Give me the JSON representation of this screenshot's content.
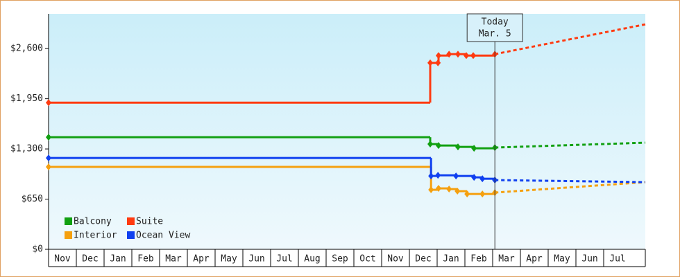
{
  "chart_data": {
    "type": "step-line",
    "xlim": [
      0,
      21.5
    ],
    "xticks": [
      {
        "value": 0,
        "label": "Nov"
      },
      {
        "value": 1,
        "label": "Dec"
      },
      {
        "value": 2,
        "label": "Jan"
      },
      {
        "value": 3,
        "label": "Feb"
      },
      {
        "value": 4,
        "label": "Mar"
      },
      {
        "value": 5,
        "label": "Apr"
      },
      {
        "value": 6,
        "label": "May"
      },
      {
        "value": 7,
        "label": "Jun"
      },
      {
        "value": 8,
        "label": "Jul"
      },
      {
        "value": 9,
        "label": "Aug"
      },
      {
        "value": 10,
        "label": "Sep"
      },
      {
        "value": 11,
        "label": "Oct"
      },
      {
        "value": 12,
        "label": "Nov"
      },
      {
        "value": 13,
        "label": "Dec"
      },
      {
        "value": 14,
        "label": "Jan"
      },
      {
        "value": 15,
        "label": "Feb"
      },
      {
        "value": 16,
        "label": "Mar"
      },
      {
        "value": 17,
        "label": "Apr"
      },
      {
        "value": 18,
        "label": "May"
      },
      {
        "value": 19,
        "label": "Jun"
      },
      {
        "value": 20,
        "label": "Jul"
      }
    ],
    "ylim": [
      0,
      3050
    ],
    "yticks": [
      {
        "value": 0,
        "label": "$0"
      },
      {
        "value": 650,
        "label": "$650"
      },
      {
        "value": 1300,
        "label": "$1,300"
      },
      {
        "value": 1950,
        "label": "$1,950"
      },
      {
        "value": 2600,
        "label": "$2,600"
      }
    ],
    "today": {
      "x": 16.08,
      "label": [
        "Today",
        "Mar. 5"
      ]
    },
    "series": [
      {
        "name": "Balcony",
        "color": "#11a011",
        "x": [
          0,
          13.75,
          14.05,
          14.75,
          15.33,
          16.08
        ],
        "values": [
          1452,
          1363,
          1345,
          1327,
          1309,
          1318
        ],
        "projection": {
          "x": [
            16.08,
            21.5
          ],
          "values": [
            1318,
            1381
          ]
        }
      },
      {
        "name": "Suite",
        "color": "#ff3a10",
        "x": [
          0,
          13.75,
          14.03,
          14.05,
          14.43,
          14.75,
          15.05,
          15.3,
          16.08
        ],
        "values": [
          1900,
          2415,
          2415,
          2510,
          2528,
          2528,
          2510,
          2510,
          2528
        ],
        "projection": {
          "x": [
            16.08,
            21.5
          ],
          "values": [
            2528,
            2914
          ]
        }
      },
      {
        "name": "Interior",
        "color": "#f5a00f",
        "x": [
          0,
          13.78,
          14.05,
          14.43,
          14.73,
          15.08,
          15.63,
          16.08
        ],
        "values": [
          1067,
          771,
          789,
          780,
          753,
          717,
          717,
          735
        ],
        "projection": {
          "x": [
            16.08,
            21.5
          ],
          "values": [
            735,
            870
          ]
        }
      },
      {
        "name": "Ocean View",
        "color": "#1040f0",
        "x": [
          0,
          13.78,
          14.03,
          14.68,
          15.33,
          15.63,
          16.08
        ],
        "values": [
          1183,
          950,
          959,
          950,
          932,
          914,
          897
        ],
        "projection": {
          "x": [
            16.08,
            21.5
          ],
          "values": [
            897,
            870
          ]
        }
      }
    ]
  }
}
